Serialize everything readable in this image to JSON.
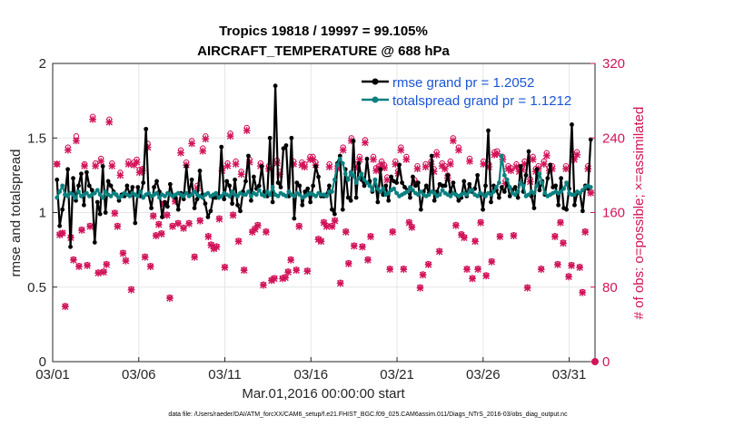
{
  "chart_data": {
    "type": "line",
    "title": "Tropics 19818 / 19997 = 99.105%",
    "subtitle": "AIRCRAFT_TEMPERATURE @ 688 hPa",
    "xlabel": "Mar.01,2016 00:00:00 start",
    "ylabel_left": "rmse and totalspread",
    "ylabel_right": "# of obs: o=possible; ×=assimilated",
    "footer": "data file: /Users/raeder/DAI/ATM_forcXX/CAM6_setup/f.e21.FHIST_BGC.f09_025.CAM6assim.011/Diags_NTrS_2016-03/obs_diag_output.nc",
    "xlim": [
      0,
      31.5
    ],
    "ylim_left": [
      0,
      2
    ],
    "ylim_right": [
      0,
      320
    ],
    "xtick_values": [
      0,
      5,
      10,
      15,
      20,
      25,
      30
    ],
    "xtick_labels": [
      "03/01",
      "03/06",
      "03/11",
      "03/16",
      "03/21",
      "03/26",
      "03/31"
    ],
    "ytick_left": [
      "0",
      "0.5",
      "1",
      "1.5",
      "2"
    ],
    "ytick_right": [
      "0",
      "80",
      "160",
      "240",
      "320"
    ],
    "grid": true,
    "legend_position": "top-right",
    "colors": {
      "rmse": "#000000",
      "spread": "#0b8080",
      "obs": "#d1145a",
      "legend_text": "#1a55d6"
    },
    "series": [
      {
        "name": "rmse grand pr = 1.2052",
        "axis": "left",
        "values": [
          1.22,
          0.91,
          1.02,
          1.12,
          1.29,
          0.77,
          1.23,
          1.08,
          1.18,
          1.26,
          1.05,
          1.27,
          1.18,
          1.15,
          0.8,
          1.07,
          0.99,
          1.31,
          1.0,
          1.21,
          1.18,
          1.14,
          1.12,
          1.08,
          1.12,
          1.11,
          1.18,
          1.12,
          1.17,
          0.93,
          1.17,
          1.11,
          1.2,
          1.56,
          1.12,
          1.03,
          1.17,
          1.21,
          1.14,
          0.97,
          1.07,
          1.04,
          1.19,
          1.11,
          1.1,
          1.02,
          1.13,
          1.09,
          1.31,
          1.13,
          1.22,
          1.03,
          1.09,
          1.28,
          1.12,
          1.06,
          0.97,
          1.01,
          1.1,
          1.1,
          1.1,
          1.44,
          1.09,
          1.21,
          1.18,
          1.06,
          1.22,
          1.05,
          1.01,
          1.14,
          1.21,
          1.38,
          1.08,
          1.24,
          1.16,
          1.18,
          1.31,
          1.14,
          1.11,
          1.5,
          1.07,
          1.85,
          1.2,
          1.17,
          1.43,
          1.45,
          1.11,
          1.5,
          0.96,
          1.2,
          1.18,
          1.05,
          1.14,
          1.16,
          1.07,
          1.18,
          1.31,
          1.24,
          1.11,
          1.11,
          1.12,
          1.18,
          1.02,
          0.99,
          1.33,
          1.38,
          1.02,
          1.29,
          1.1,
          1.08,
          1.48,
          1.1,
          1.33,
          1.22,
          1.18,
          1.36,
          1.21,
          1.14,
          1.22,
          1.07,
          1.29,
          1.12,
          1.18,
          1.08,
          1.24,
          1.21,
          1.2,
          1.32,
          1.2,
          1.17,
          1.15,
          1.1,
          1.24,
          1.18,
          1.2,
          1.02,
          1.14,
          1.18,
          1.13,
          1.38,
          1.08,
          1.14,
          1.19,
          1.18,
          1.18,
          1.25,
          1.14,
          1.2,
          1.12,
          1.08,
          1.1,
          1.21,
          1.11,
          1.19,
          1.14,
          1.16,
          1.25,
          1.13,
          1.02,
          1.18,
          1.55,
          1.07,
          1.18,
          1.15,
          1.1,
          1.17,
          1.14,
          1.2,
          1.11,
          1.15,
          1.17,
          1.1,
          1.31,
          1.14,
          1.25,
          1.41,
          1.11,
          1.03,
          1.29,
          1.15,
          1.21,
          1.12,
          1.23,
          1.32,
          1.17,
          1.18,
          1.05,
          1.23,
          1.03,
          1.02,
          1.16,
          1.59,
          1.05,
          1.13,
          1.13,
          1.01,
          1.18,
          1.16,
          1.49
        ]
      },
      {
        "name": "totalspread grand pr = 1.1212",
        "axis": "left",
        "values": [
          1.1,
          1.14,
          1.18,
          1.12,
          1.11,
          1.13,
          1.12,
          1.1,
          1.14,
          1.11,
          1.12,
          1.13,
          1.11,
          1.12,
          1.13,
          1.15,
          1.12,
          1.1,
          1.14,
          1.12,
          1.11,
          1.13,
          1.12,
          1.1,
          1.11,
          1.13,
          1.12,
          1.11,
          1.13,
          1.12,
          1.11,
          1.14,
          1.1,
          1.12,
          1.13,
          1.11,
          1.12,
          1.13,
          1.1,
          1.12,
          1.11,
          1.13,
          1.12,
          1.11,
          1.12,
          1.13,
          1.12,
          1.11,
          1.13,
          1.11,
          1.12,
          1.14,
          1.12,
          1.11,
          1.1,
          1.12,
          1.13,
          1.11,
          1.12,
          1.13,
          1.1,
          1.11,
          1.13,
          1.12,
          1.11,
          1.14,
          1.12,
          1.11,
          1.13,
          1.12,
          1.12,
          1.14,
          1.11,
          1.13,
          1.12,
          1.15,
          1.12,
          1.11,
          1.14,
          1.12,
          1.17,
          1.12,
          1.11,
          1.13,
          1.12,
          1.11,
          1.14,
          1.12,
          1.11,
          1.13,
          1.12,
          1.1,
          1.11,
          1.12,
          1.13,
          1.12,
          1.11,
          1.13,
          1.12,
          1.12,
          1.11,
          1.14,
          1.14,
          1.22,
          1.32,
          1.36,
          1.33,
          1.26,
          1.22,
          1.27,
          1.25,
          1.2,
          1.23,
          1.26,
          1.22,
          1.2,
          1.18,
          1.15,
          1.22,
          1.16,
          1.14,
          1.16,
          1.12,
          1.13,
          1.15,
          1.16,
          1.13,
          1.11,
          1.12,
          1.13,
          1.14,
          1.17,
          1.15,
          1.13,
          1.12,
          1.14,
          1.12,
          1.11,
          1.12,
          1.14,
          1.13,
          1.11,
          1.12,
          1.15,
          1.13,
          1.12,
          1.11,
          1.13,
          1.12,
          1.11,
          1.12,
          1.13,
          1.12,
          1.14,
          1.15,
          1.12,
          1.11,
          1.13,
          1.12,
          1.11,
          1.13,
          1.12,
          1.14,
          1.17,
          1.2,
          1.38,
          1.25,
          1.22,
          1.17,
          1.13,
          1.12,
          1.14,
          1.2,
          1.18,
          1.11,
          1.12,
          1.14,
          1.13,
          1.18,
          1.26,
          1.2,
          1.13,
          1.11,
          1.12,
          1.13,
          1.14,
          1.13,
          1.14,
          1.16,
          1.2,
          1.13,
          1.12,
          1.12,
          1.14,
          1.13,
          1.15,
          1.17,
          1.18,
          1.17
        ]
      },
      {
        "name": "obs possible",
        "axis": "right",
        "values": [
          212,
          137,
          138,
          60,
          230,
          134,
          110,
          242,
          103,
          142,
          212,
          104,
          146,
          263,
          213,
          96,
          218,
          97,
          105,
          260,
          213,
          160,
          146,
          203,
          117,
          109,
          215,
          78,
          214,
          217,
          206,
          207,
          113,
          234,
          103,
          157,
          136,
          148,
          138,
          170,
          158,
          69,
          146,
          173,
          149,
          227,
          144,
          214,
          149,
          237,
          113,
          189,
          152,
          229,
          242,
          135,
          126,
          122,
          124,
          154,
          208,
          102,
          213,
          245,
          158,
          215,
          130,
          204,
          99,
          251,
          217,
          140,
          143,
          147,
          213,
          83,
          140,
          210,
          88,
          90,
          216,
          204,
          90,
          91,
          97,
          110,
          215,
          99,
          146,
          214,
          212,
          98,
          220,
          220,
          214,
          132,
          130,
          150,
          146,
          212,
          146,
          152,
          210,
          85,
          230,
          140,
          106,
          240,
          125,
          212,
          220,
          124,
          238,
          110,
          135,
          220,
          208,
          210,
          215,
          211,
          198,
          100,
          140,
          215,
          205,
          230,
          100,
          220,
          150,
          145,
          195,
          210,
          80,
          94,
          212,
          105,
          215,
          207,
          225,
          119,
          213,
          210,
          200,
          215,
          240,
          147,
          230,
          137,
          134,
          100,
          218,
          90,
          130,
          100,
          150,
          215,
          93,
          212,
          108,
          225,
          226,
          135,
          220,
          194,
          210,
          208,
          136,
          212,
          207,
          209,
          215,
          80,
          196,
          220,
          207,
          210,
          100,
          215,
          224,
          208,
          210,
          135,
          105,
          150,
          128,
          210,
          92,
          104,
          220,
          225,
          102,
          75,
          140,
          210,
          182
        ]
      },
      {
        "name": "obs assimilated",
        "axis": "right",
        "values": [
          212,
          136,
          138,
          59,
          227,
          133,
          109,
          237,
          102,
          141,
          210,
          103,
          145,
          260,
          210,
          95,
          215,
          96,
          104,
          257,
          210,
          159,
          145,
          200,
          116,
          108,
          212,
          77,
          211,
          214,
          203,
          205,
          112,
          230,
          102,
          156,
          135,
          147,
          137,
          169,
          157,
          68,
          145,
          172,
          148,
          224,
          143,
          211,
          148,
          234,
          112,
          186,
          151,
          226,
          239,
          134,
          125,
          121,
          123,
          153,
          205,
          101,
          210,
          242,
          157,
          212,
          129,
          201,
          98,
          248,
          214,
          139,
          142,
          146,
          210,
          82,
          139,
          207,
          87,
          89,
          213,
          201,
          89,
          90,
          96,
          109,
          212,
          98,
          145,
          211,
          209,
          97,
          217,
          217,
          211,
          131,
          129,
          149,
          145,
          209,
          145,
          151,
          207,
          84,
          227,
          139,
          105,
          237,
          124,
          209,
          217,
          123,
          235,
          109,
          134,
          217,
          205,
          207,
          212,
          208,
          195,
          99,
          139,
          212,
          202,
          227,
          99,
          217,
          149,
          144,
          192,
          207,
          79,
          93,
          209,
          104,
          212,
          204,
          222,
          118,
          210,
          207,
          197,
          212,
          237,
          146,
          227,
          136,
          133,
          99,
          215,
          89,
          129,
          99,
          149,
          212,
          92,
          209,
          107,
          222,
          223,
          134,
          217,
          191,
          207,
          205,
          135,
          209,
          204,
          206,
          212,
          79,
          193,
          217,
          204,
          207,
          99,
          212,
          221,
          205,
          207,
          134,
          104,
          149,
          127,
          207,
          91,
          103,
          217,
          222,
          101,
          74,
          139,
          207,
          181
        ]
      }
    ]
  }
}
